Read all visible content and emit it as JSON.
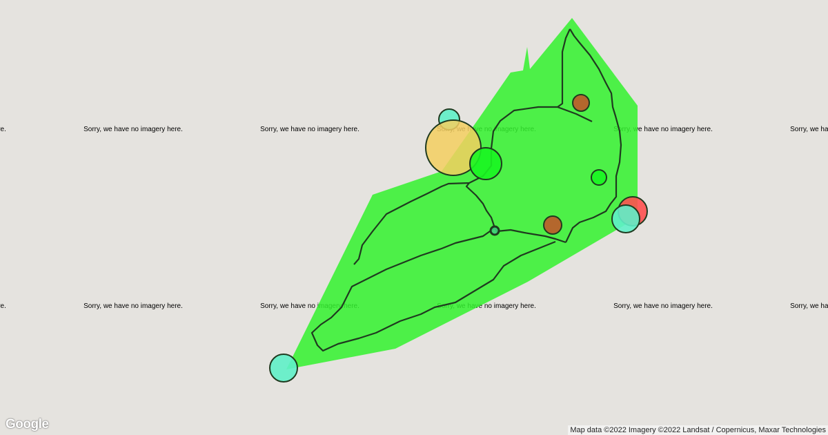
{
  "map": {
    "no_imagery_text": "Sorry, we have no imagery here.",
    "attribution": "Map data ©2022 Imagery ©2022 Landsat / Copernicus, Maxar Technologies",
    "logo": "Google",
    "colors": {
      "background": "#e5e3df",
      "polygon": "#33f22e",
      "trail": "#1f3a1f",
      "cyan": "#5ff0c8",
      "yellow": "#f5cf60",
      "green": "#19f521",
      "brown": "#c0582a",
      "red": "#ff5050"
    },
    "markers": [
      {
        "color": "cyan"
      },
      {
        "color": "yellow"
      },
      {
        "color": "green"
      },
      {
        "color": "brown"
      },
      {
        "color": "green"
      },
      {
        "color": "red"
      },
      {
        "color": "cyan"
      },
      {
        "color": "brown"
      },
      {
        "color": "trail"
      },
      {
        "color": "cyan"
      }
    ]
  }
}
